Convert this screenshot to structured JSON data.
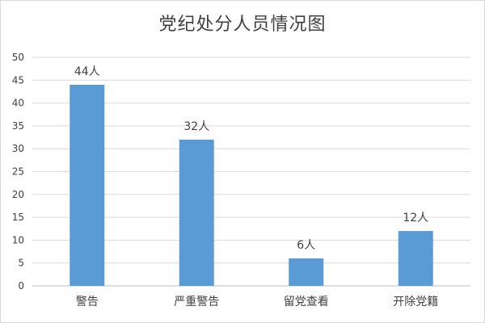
{
  "chart_data": {
    "type": "bar",
    "title": "党纪处分人员情况图",
    "categories": [
      "警告",
      "严重警告",
      "留党查看",
      "开除党籍"
    ],
    "values": [
      44,
      32,
      6,
      12
    ],
    "data_labels": [
      "44人",
      "32人",
      "6人",
      "12人"
    ],
    "xlabel": "",
    "ylabel": "",
    "ylim": [
      0,
      50
    ],
    "yticks": [
      0,
      5,
      10,
      15,
      20,
      25,
      30,
      35,
      40,
      45,
      50
    ],
    "grid": true,
    "legend": "none",
    "bar_color": "#5b9bd5",
    "grid_color": "#d9d9d9"
  }
}
